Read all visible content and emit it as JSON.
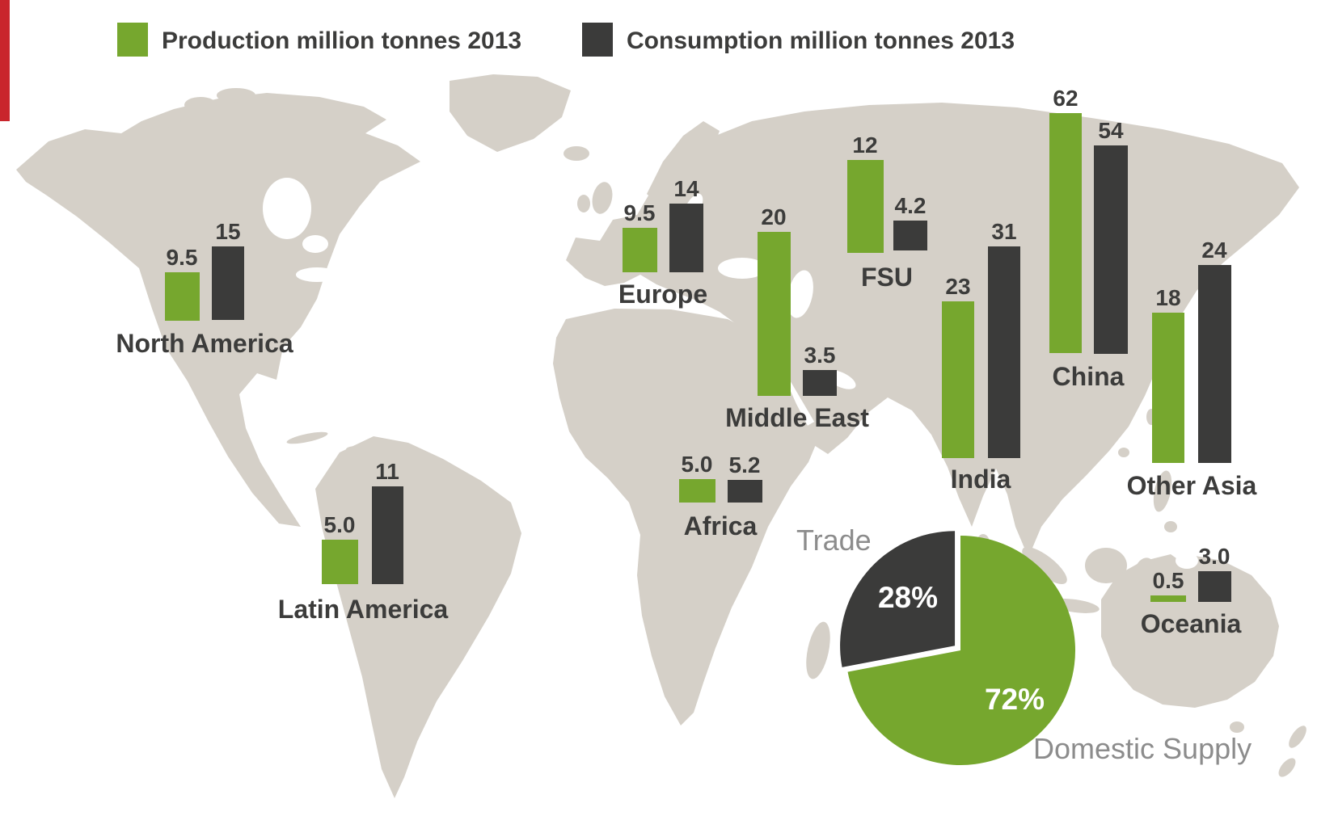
{
  "legend": {
    "production_label": "Production million tonnes 2013",
    "consumption_label": "Consumption million tonnes 2013"
  },
  "colors": {
    "production_green": "#76A72E",
    "consumption_dark": "#3B3B3A",
    "map_land": "#D5D0C8",
    "label_dark": "#3C3C3B",
    "label_grey": "#8C8C8C",
    "red_edge_mark": "#C9252C"
  },
  "chart_data": [
    {
      "type": "bar",
      "title": "Production vs Consumption by world region, million tonnes, 2013",
      "unit": "million tonnes",
      "year": "2013",
      "legend": [
        "Production million tonnes 2013",
        "Consumption million tonnes 2013"
      ],
      "layout_hint": "paired bars placed over each region of a world map, value labels above bars",
      "regions": [
        {
          "name": "North America",
          "production": 9.5,
          "consumption": 15,
          "production_label": "9.5",
          "consumption_label": "15"
        },
        {
          "name": "Latin America",
          "production": 5.0,
          "consumption": 11,
          "production_label": "5.0",
          "consumption_label": "11"
        },
        {
          "name": "Europe",
          "production": 9.5,
          "consumption": 14,
          "production_label": "9.5",
          "consumption_label": "14"
        },
        {
          "name": "Middle East",
          "production": 20,
          "consumption": 3.5,
          "production_label": "20",
          "consumption_label": "3.5"
        },
        {
          "name": "FSU",
          "production": 12,
          "consumption": 4.2,
          "production_label": "12",
          "consumption_label": "4.2"
        },
        {
          "name": "Africa",
          "production": 5.0,
          "consumption": 5.2,
          "production_label": "5.0",
          "consumption_label": "5.2"
        },
        {
          "name": "India",
          "production": 23,
          "consumption": 31,
          "production_label": "23",
          "consumption_label": "31"
        },
        {
          "name": "China",
          "production": 62,
          "consumption": 54,
          "production_label": "62",
          "consumption_label": "54"
        },
        {
          "name": "Other Asia",
          "production": 18,
          "consumption": 24,
          "production_label": "18",
          "consumption_label": "24"
        },
        {
          "name": "Oceania",
          "production": 0.5,
          "consumption": 3.0,
          "production_label": "0.5",
          "consumption_label": "3.0"
        }
      ]
    },
    {
      "type": "pie",
      "start_angle_deg": -90,
      "exploded_slice": "Trade",
      "slices": [
        {
          "label": "Trade",
          "value_pct": 28,
          "pct_label": "28%",
          "color": "#3B3B3A"
        },
        {
          "label": "Domestic Supply",
          "value_pct": 72,
          "pct_label": "72%",
          "color": "#76A72E"
        }
      ]
    }
  ]
}
